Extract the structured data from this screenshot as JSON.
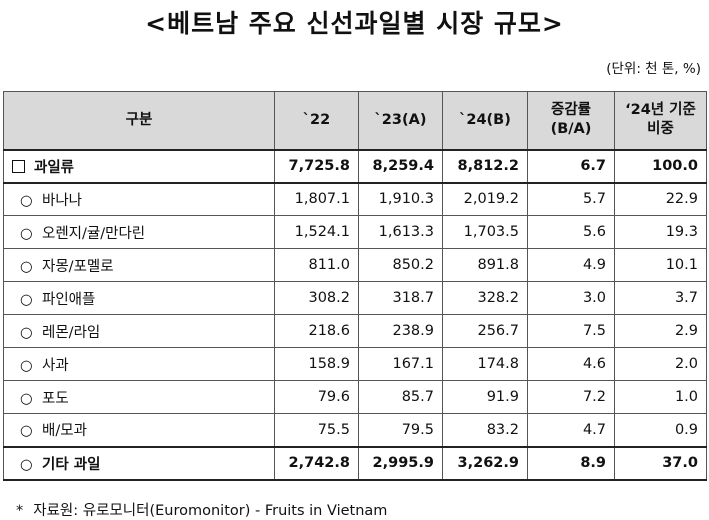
{
  "title": "<베트남 주요 신선과일별 시장 규모>",
  "unit": "(단위: 천 톤, %)",
  "headers": {
    "category": "구분",
    "y22": "`22",
    "y23": "`23(A)",
    "y24": "`24(B)",
    "growth_l1": "증감률",
    "growth_l2": "(B/A)",
    "share_l1": "‘24년 기준",
    "share_l2": "비중"
  },
  "bullets": {
    "square": "□",
    "circle": "○"
  },
  "rows": [
    {
      "label": "과일류",
      "y22": "7,725.8",
      "y23": "8,259.4",
      "y24": "8,812.2",
      "growth": "6.7",
      "share": "100.0"
    },
    {
      "label": "바나나",
      "y22": "1,807.1",
      "y23": "1,910.3",
      "y24": "2,019.2",
      "growth": "5.7",
      "share": "22.9"
    },
    {
      "label": "오렌지/귤/만다린",
      "y22": "1,524.1",
      "y23": "1,613.3",
      "y24": "1,703.5",
      "growth": "5.6",
      "share": "19.3"
    },
    {
      "label": "자몽/포멜로",
      "y22": "811.0",
      "y23": "850.2",
      "y24": "891.8",
      "growth": "4.9",
      "share": "10.1"
    },
    {
      "label": "파인애플",
      "y22": "308.2",
      "y23": "318.7",
      "y24": "328.2",
      "growth": "3.0",
      "share": "3.7"
    },
    {
      "label": "레몬/라임",
      "y22": "218.6",
      "y23": "238.9",
      "y24": "256.7",
      "growth": "7.5",
      "share": "2.9"
    },
    {
      "label": "사과",
      "y22": "158.9",
      "y23": "167.1",
      "y24": "174.8",
      "growth": "4.6",
      "share": "2.0"
    },
    {
      "label": "포도",
      "y22": "79.6",
      "y23": "85.7",
      "y24": "91.9",
      "growth": "7.2",
      "share": "1.0"
    },
    {
      "label": "배/모과",
      "y22": "75.5",
      "y23": "79.5",
      "y24": "83.2",
      "growth": "4.7",
      "share": "0.9"
    },
    {
      "label": "기타 과일",
      "y22": "2,742.8",
      "y23": "2,995.9",
      "y24": "3,262.9",
      "growth": "8.9",
      "share": "37.0"
    }
  ],
  "source": {
    "star": "*",
    "text": "자료원: 유로모니터(Euromonitor) - Fruits in Vietnam"
  }
}
